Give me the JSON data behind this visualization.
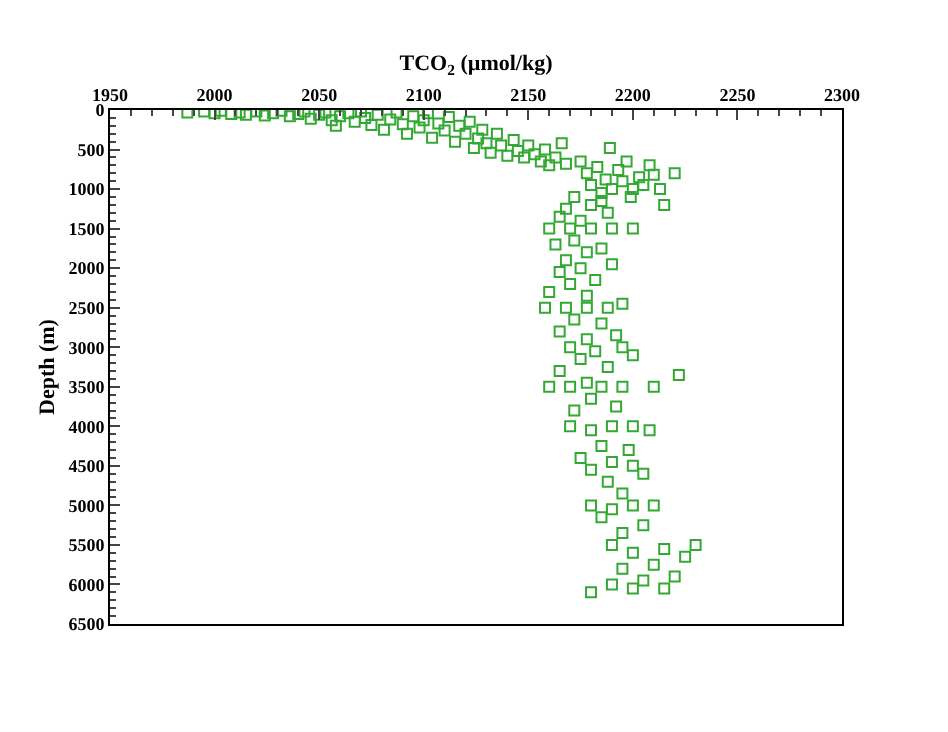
{
  "chart_data": {
    "type": "scatter",
    "xlabel": "TCO$_{2}$ (µmol/kg)",
    "ylabel": "Depth (m)",
    "xlim": [
      1950,
      2300
    ],
    "xticks": [
      1950,
      2000,
      2050,
      2100,
      2150,
      2200,
      2250,
      2300
    ],
    "ylim": [
      6500,
      0
    ],
    "yticks": [
      0,
      500,
      1000,
      1500,
      2000,
      2500,
      3000,
      3500,
      4000,
      4500,
      5000,
      5500,
      6000,
      6500
    ],
    "marker": "square",
    "series": [
      {
        "color": "#33a833",
        "x": [
          1987,
          1995,
          2000,
          2003,
          2008,
          2012,
          2015,
          2020,
          2024,
          2028,
          2032,
          2036,
          2040,
          2043,
          2046,
          2050,
          2053,
          2056,
          2058,
          2060,
          2064,
          2067,
          2070,
          2072,
          2075,
          2078,
          2081,
          2084,
          2087,
          2090,
          2092,
          2095,
          2098,
          2100,
          2102,
          2104,
          2107,
          2110,
          2112,
          2115,
          2117,
          2120,
          2122,
          2124,
          2126,
          2128,
          2130,
          2132,
          2135,
          2137,
          2140,
          2143,
          2145,
          2148,
          2150,
          2153,
          2156,
          2158,
          2160,
          2163,
          2166,
          2168,
          2175,
          2178,
          2180,
          2183,
          2185,
          2187,
          2189,
          2190,
          2193,
          2195,
          2197,
          2199,
          2200,
          2203,
          2205,
          2208,
          2210,
          2213,
          2215,
          2220,
          2185,
          2188,
          2180,
          2172,
          2168,
          2165,
          2160,
          2170,
          2180,
          2190,
          2200,
          2175,
          2163,
          2172,
          2178,
          2168,
          2185,
          2175,
          2190,
          2165,
          2170,
          2182,
          2160,
          2178,
          2158,
          2168,
          2178,
          2188,
          2195,
          2172,
          2185,
          2165,
          2178,
          2192,
          2170,
          2182,
          2195,
          2200,
          2175,
          2165,
          2188,
          2222,
          2178,
          2160,
          2170,
          2185,
          2195,
          2210,
          2180,
          2172,
          2192,
          2170,
          2180,
          2190,
          2200,
          2208,
          2185,
          2198,
          2175,
          2190,
          2180,
          2200,
          2205,
          2188,
          2195,
          2180,
          2190,
          2200,
          2210,
          2185,
          2205,
          2195,
          2190,
          2215,
          2230,
          2200,
          2225,
          2210,
          2195,
          2220,
          2205,
          2190,
          2215,
          2180,
          2200
        ],
        "values": [
          30,
          20,
          40,
          10,
          50,
          30,
          60,
          20,
          70,
          40,
          10,
          80,
          50,
          20,
          110,
          60,
          30,
          130,
          200,
          80,
          40,
          150,
          20,
          100,
          190,
          60,
          250,
          120,
          30,
          180,
          300,
          80,
          220,
          130,
          40,
          350,
          170,
          260,
          90,
          400,
          200,
          300,
          150,
          480,
          360,
          250,
          420,
          540,
          300,
          450,
          580,
          380,
          520,
          600,
          450,
          560,
          650,
          500,
          700,
          600,
          420,
          680,
          650,
          800,
          950,
          720,
          1050,
          880,
          480,
          1000,
          760,
          900,
          650,
          1100,
          1000,
          850,
          950,
          700,
          820,
          1000,
          1200,
          800,
          1150,
          1300,
          1200,
          1100,
          1250,
          1350,
          1500,
          1500,
          1500,
          1500,
          1500,
          1400,
          1700,
          1650,
          1800,
          1900,
          1750,
          2000,
          1950,
          2050,
          2200,
          2150,
          2300,
          2350,
          2500,
          2500,
          2500,
          2500,
          2450,
          2650,
          2700,
          2800,
          2900,
          2850,
          3000,
          3050,
          3000,
          3100,
          3150,
          3300,
          3250,
          3350,
          3450,
          3500,
          3500,
          3500,
          3500,
          3500,
          3650,
          3800,
          3750,
          4000,
          4050,
          4000,
          4000,
          4050,
          4250,
          4300,
          4400,
          4450,
          4550,
          4500,
          4600,
          4700,
          4850,
          5000,
          5050,
          5000,
          5000,
          5150,
          5250,
          5350,
          5500,
          5550,
          5500,
          5600,
          5650,
          5750,
          5800,
          5900,
          5950,
          6000,
          6050,
          6100,
          6050
        ]
      }
    ]
  }
}
